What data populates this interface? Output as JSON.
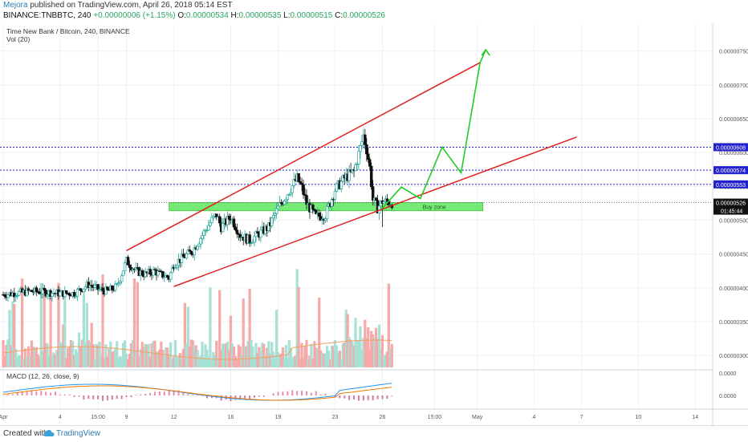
{
  "header": {
    "author": "Mejora",
    "published_text": "published on TradingView.com, April 26, 2018 05:14 EST",
    "symbol": "BINANCE:TNBBTC, 240",
    "change": "+0.00000006 (+1.15%)",
    "ohlc_o_label": "O:",
    "ohlc_o": "0.00000534",
    "ohlc_h_label": "H:",
    "ohlc_h": "0.00000535",
    "ohlc_l_label": "L:",
    "ohlc_l": "0.00000515",
    "ohlc_c_label": "C:",
    "ohlc_c": "0.00000526"
  },
  "legend": {
    "instrument": "Time New Bank / Bitcoin, 240, BINANCE",
    "volume": "Vol (20)",
    "macd": "MACD (12, 26, close, 9)"
  },
  "price_scale": {
    "labels": [
      "0.00000750",
      "0.00000700",
      "0.00000650",
      "0.00000600",
      "0.00000550",
      "0.00000500",
      "0.00000450",
      "0.00000400",
      "0.00000350",
      "0.00000300"
    ],
    "levels": [
      750,
      700,
      650,
      600,
      550,
      500,
      450,
      400,
      350,
      300
    ]
  },
  "marked_levels": {
    "labels": [
      "0.00000608",
      "0.00000574",
      "0.00000553"
    ],
    "levels": [
      608,
      574,
      553
    ],
    "color": "#2222cc"
  },
  "current_price": {
    "label": "0.00000526",
    "level": 526,
    "countdown": "01:45:44"
  },
  "macd_scale": {
    "labels": [
      "0.0000",
      "0.0000"
    ]
  },
  "time_axis": {
    "labels": [
      "Apr",
      "4",
      "15:00",
      "9",
      "12",
      "16",
      "19",
      "23",
      "26",
      "15:00",
      "May",
      "4",
      "7",
      "10",
      "14"
    ],
    "positions": [
      0,
      6,
      10,
      13,
      18,
      24,
      29,
      35,
      40,
      45.5,
      50,
      56,
      61,
      67,
      73
    ]
  },
  "buy_zone": {
    "label": "Buy zone",
    "x0": 17.5,
    "x1": 50.6,
    "low": 514,
    "high": 526,
    "color": "#5ee65e"
  },
  "colors": {
    "up": "#26a69a",
    "down": "#111111",
    "channel": "#e02020",
    "projection": "#22cc22",
    "vol_up": "#a7e0d5",
    "vol_down": "#f5a9a9"
  },
  "chart_data": {
    "type": "candlestick",
    "x_unit": "days since Apr 1 2018",
    "y_unit": "satoshi (1e-8 BTC)",
    "ylim": [
      280,
      790
    ],
    "xlim": [
      0,
      74.5
    ],
    "candles_anchor": [
      [
        0,
        390
      ],
      [
        3,
        395
      ],
      [
        6,
        392
      ],
      [
        7.5,
        392
      ],
      [
        9,
        405
      ],
      [
        10,
        398
      ],
      [
        11,
        395
      ],
      [
        12,
        402
      ],
      [
        13,
        440
      ],
      [
        14,
        425
      ],
      [
        15,
        420
      ],
      [
        16,
        425
      ],
      [
        16.5,
        420
      ],
      [
        17,
        418
      ],
      [
        17.5,
        415
      ],
      [
        18,
        435
      ],
      [
        19,
        445
      ],
      [
        20,
        455
      ],
      [
        21,
        478
      ],
      [
        22,
        500
      ],
      [
        22.5,
        508
      ],
      [
        23,
        490
      ],
      [
        24,
        505
      ],
      [
        25,
        478
      ],
      [
        26,
        470
      ],
      [
        27,
        480
      ],
      [
        28,
        490
      ],
      [
        29,
        518
      ],
      [
        30,
        540
      ],
      [
        31,
        562
      ],
      [
        31.5,
        548
      ],
      [
        32,
        525
      ],
      [
        33,
        505
      ],
      [
        34,
        508
      ],
      [
        35,
        545
      ],
      [
        36,
        562
      ],
      [
        37,
        572
      ],
      [
        37.5,
        598
      ],
      [
        38,
        625
      ],
      [
        38.3,
        608
      ],
      [
        38.7,
        575
      ],
      [
        39,
        530
      ],
      [
        39.5,
        518
      ],
      [
        40,
        528
      ],
      [
        41,
        526
      ]
    ],
    "channel_upper": [
      [
        13,
        455
      ],
      [
        50.3,
        733
      ]
    ],
    "channel_lower": [
      [
        18,
        402
      ],
      [
        60.5,
        623
      ]
    ],
    "projection": [
      [
        40,
        518
      ],
      [
        42,
        549
      ],
      [
        44,
        532
      ],
      [
        46.3,
        608
      ],
      [
        48.3,
        570
      ],
      [
        50.3,
        733
      ],
      [
        50.9,
        752
      ]
    ]
  }
}
